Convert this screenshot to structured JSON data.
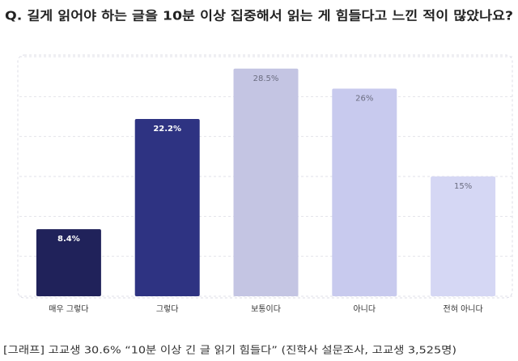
{
  "chart_data": {
    "type": "bar",
    "title": "Q. 길게 읽어야 하는 글을 10분 이상 집중해서 읽는 게 힘들다고 느낀 적이 많았나요?",
    "categories": [
      "매우 그렇다",
      "그렇다",
      "보통이다",
      "아니다",
      "전혀 아니다"
    ],
    "values": [
      8.4,
      22.2,
      28.5,
      26,
      15
    ],
    "value_labels": [
      "8.4%",
      "22.2%",
      "28.5%",
      "26%",
      "15%"
    ],
    "colors": [
      "#20225a",
      "#2e3382",
      "#c4c5e3",
      "#c8caee",
      "#d5d7f4"
    ],
    "label_colors": [
      "#ffffff",
      "#ffffff",
      "#6b6d80",
      "#6b6d80",
      "#6b6d80"
    ],
    "ylim": [
      0,
      30
    ],
    "yticks": [
      0,
      5,
      10,
      15,
      20,
      25,
      30
    ],
    "grid": true,
    "caption": "[그래프] 고교생 30.6% “10분 이상 긴 글 읽기 힘들다” (진학사 설문조사, 고교생 3,525명)"
  }
}
